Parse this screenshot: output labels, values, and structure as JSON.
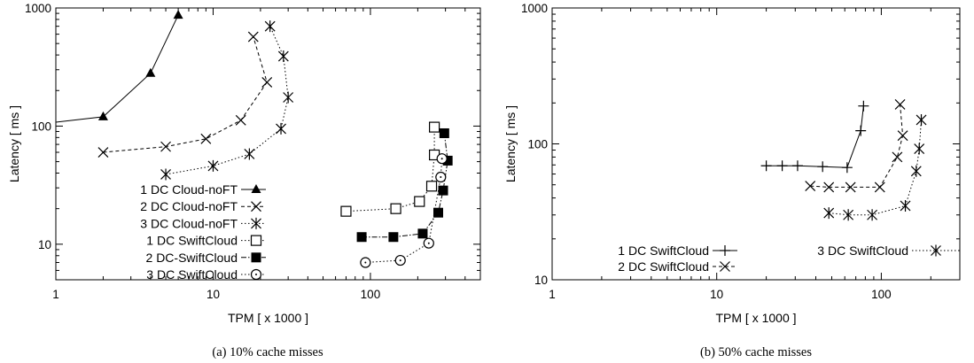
{
  "chart_data": [
    {
      "type": "line",
      "caption": "(a)  10% cache misses",
      "xlabel": "TPM [ x 1000 ]",
      "ylabel": "Latency [ ms ]",
      "xscale": "log",
      "yscale": "log",
      "xlim": [
        1,
        500
      ],
      "ylim": [
        5,
        1000
      ],
      "xticks": [
        "1",
        "10",
        "100"
      ],
      "yticks": [
        "10",
        "100",
        "1000"
      ],
      "legend_position": "bottom-left",
      "series": [
        {
          "name": "1 DC Cloud-noFT",
          "marker": "filled-triangle",
          "line": "solid",
          "x": [
            1,
            2,
            4,
            6
          ],
          "y": [
            108,
            120,
            280,
            870
          ]
        },
        {
          "name": "2 DC Cloud-noFT",
          "marker": "x",
          "line": "dashed",
          "x": [
            2,
            5,
            9,
            15,
            22,
            18
          ],
          "y": [
            60,
            67,
            78,
            112,
            235,
            570
          ]
        },
        {
          "name": "3 DC Cloud-noFT",
          "marker": "asterisk",
          "line": "dotted",
          "x": [
            5,
            10,
            17,
            27,
            30,
            28,
            23
          ],
          "y": [
            39,
            46,
            58,
            95,
            175,
            390,
            700
          ]
        },
        {
          "name": "1 DC SwiftCloud",
          "marker": "open-square",
          "line": "dotted",
          "x": [
            70,
            145,
            205,
            245,
            255,
            255
          ],
          "y": [
            19,
            20,
            23,
            31,
            57,
            98
          ]
        },
        {
          "name": "2 DC-SwiftCloud",
          "marker": "filled-square",
          "line": "dash-dot",
          "x": [
            88,
            140,
            215,
            270,
            290,
            310,
            295
          ],
          "y": [
            11.5,
            11.5,
            12.3,
            18.5,
            28.5,
            51,
            87
          ]
        },
        {
          "name": "3 DC SwiftCloud",
          "marker": "open-circle",
          "line": "dotted",
          "x": [
            93,
            155,
            235,
            280,
            285
          ],
          "y": [
            7,
            7.3,
            10.2,
            37,
            53
          ]
        }
      ]
    },
    {
      "type": "line",
      "caption": "(b)  50% cache misses",
      "xlabel": "TPM [ x 1000 ]",
      "ylabel": "Latency [ ms ]",
      "xscale": "log",
      "yscale": "log",
      "xlim": [
        1,
        300
      ],
      "ylim": [
        10,
        1000
      ],
      "xticks": [
        "1",
        "10",
        "100"
      ],
      "yticks": [
        "10",
        "100",
        "1000"
      ],
      "legend_position": "bottom",
      "series": [
        {
          "name": "1 DC SwiftCloud",
          "marker": "plus",
          "line": "solid",
          "x": [
            20,
            25,
            31,
            44,
            62,
            75,
            78
          ],
          "y": [
            69,
            69,
            69,
            68,
            67,
            125,
            190
          ]
        },
        {
          "name": "2 DC SwiftCloud",
          "marker": "x",
          "line": "dashed",
          "x": [
            37,
            48,
            65,
            98,
            125,
            135,
            130
          ],
          "y": [
            49,
            48,
            48,
            48,
            80,
            115,
            195
          ]
        },
        {
          "name": "3 DC SwiftCloud",
          "marker": "asterisk",
          "line": "dotted",
          "x": [
            48,
            63,
            88,
            140,
            163,
            170,
            175
          ],
          "y": [
            31,
            30,
            30,
            35,
            63,
            92,
            150
          ]
        }
      ]
    }
  ]
}
